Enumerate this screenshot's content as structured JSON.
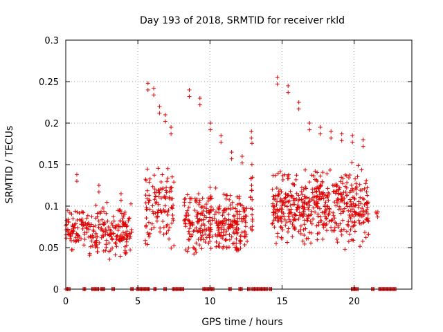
{
  "chart_data": {
    "type": "scatter",
    "title": "Day 193 of 2018, SRMTID for receiver rkld",
    "xlabel": "GPS time / hours",
    "ylabel": "SRMTID / TECUs",
    "xlim": [
      0,
      24
    ],
    "ylim": [
      0,
      0.3
    ],
    "x_ticks": [
      0,
      5,
      10,
      15,
      20
    ],
    "x_tick_labels": [
      "0",
      "5",
      "10",
      "15",
      "20"
    ],
    "y_ticks": [
      0,
      0.05,
      0.1,
      0.15,
      0.2,
      0.25,
      0.3
    ],
    "y_tick_labels": [
      "0",
      "0.05",
      "0.1",
      "0.15",
      "0.2",
      "0.25",
      "0.3"
    ],
    "grid": true,
    "marker": "+",
    "color": "#e00000",
    "clusters": [
      {
        "x_start": 0.0,
        "x_end": 4.6,
        "y_min": 0.03,
        "y_max": 0.11,
        "count": 260,
        "peaks": [
          0.138,
          0.125,
          0.115
        ]
      },
      {
        "x_start": 5.5,
        "x_end": 7.5,
        "y_min": 0.03,
        "y_max": 0.17,
        "count": 120,
        "peaks": [
          0.248,
          0.242,
          0.22,
          0.21,
          0.195
        ]
      },
      {
        "x_start": 8.2,
        "x_end": 12.6,
        "y_min": 0.03,
        "y_max": 0.13,
        "count": 320,
        "peaks": [
          0.24,
          0.23,
          0.2,
          0.185,
          0.165,
          0.16
        ]
      },
      {
        "x_start": 12.8,
        "x_end": 12.95,
        "y_min": 0.03,
        "y_max": 0.19,
        "count": 20,
        "peaks": [
          0.19
        ]
      },
      {
        "x_start": 14.3,
        "x_end": 21.0,
        "y_min": 0.04,
        "y_max": 0.16,
        "count": 520,
        "peaks": [
          0.255,
          0.245,
          0.225,
          0.2,
          0.195,
          0.19,
          0.187,
          0.185,
          0.18
        ]
      },
      {
        "x_start": 21.5,
        "x_end": 21.7,
        "y_min": 0.08,
        "y_max": 0.1,
        "count": 4,
        "peaks": []
      }
    ],
    "zero_values_x_ranges": [
      [
        0.0,
        0.3
      ],
      [
        1.2,
        1.4
      ],
      [
        1.8,
        2.3
      ],
      [
        2.4,
        2.7
      ],
      [
        3.2,
        3.4
      ],
      [
        4.5,
        4.7
      ],
      [
        4.9,
        5.8
      ],
      [
        6.1,
        6.3
      ],
      [
        6.8,
        7.0
      ],
      [
        7.4,
        8.2
      ],
      [
        9.5,
        10.3
      ],
      [
        11.3,
        11.5
      ],
      [
        12.0,
        12.3
      ],
      [
        12.6,
        12.8
      ],
      [
        12.9,
        14.0
      ],
      [
        14.1,
        14.3
      ],
      [
        19.8,
        20.3
      ],
      [
        21.2,
        21.4
      ],
      [
        21.7,
        22.9
      ]
    ]
  }
}
